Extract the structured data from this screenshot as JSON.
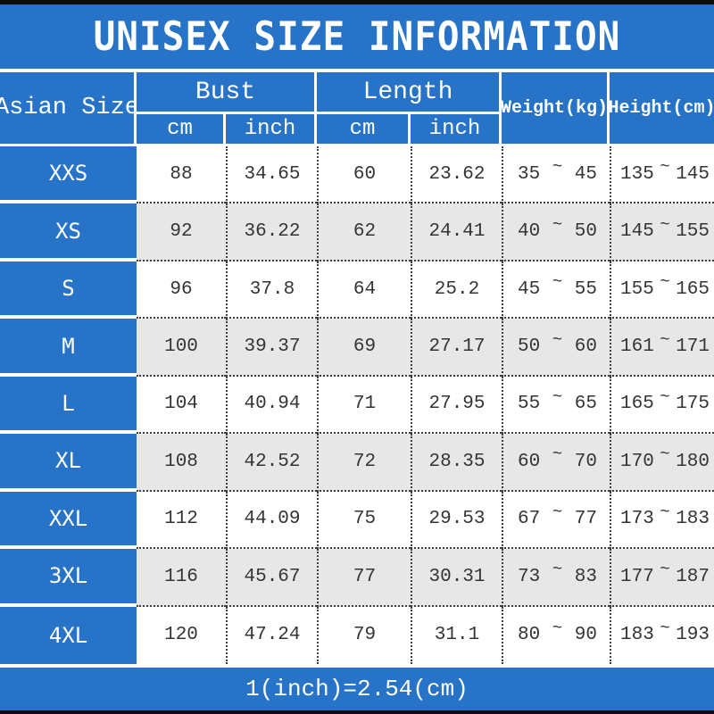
{
  "title": "UNISEX SIZE INFORMATION",
  "header": {
    "size": "Asian Size",
    "bust": "Bust",
    "length": "Length",
    "cm": "cm",
    "inch": "inch",
    "weight": "Weight(kg)",
    "height": "Height(cm)"
  },
  "tilde": "~",
  "footer": {
    "note": "1(inch)=2.54(cm)"
  },
  "colors": {
    "accent_blue": "#2673c8",
    "alt_row_gray": "#e7e7e7",
    "border_dotted": "#3c3c3c",
    "bar_black": "#0d0d0d",
    "text_dark": "#343434",
    "text_white": "#ffffff"
  },
  "chart_data": {
    "type": "table",
    "title": "UNISEX SIZE INFORMATION",
    "columns": [
      "Asian Size",
      "Bust cm",
      "Bust inch",
      "Length cm",
      "Length inch",
      "Weight(kg)",
      "Height(cm)"
    ],
    "rows": [
      {
        "size": "XXS",
        "bust_cm": "88",
        "bust_inch": "34.65",
        "len_cm": "60",
        "len_inch": "23.62",
        "w_min": "35",
        "w_max": "45",
        "h_min": "135",
        "h_max": "145"
      },
      {
        "size": "XS",
        "bust_cm": "92",
        "bust_inch": "36.22",
        "len_cm": "62",
        "len_inch": "24.41",
        "w_min": "40",
        "w_max": "50",
        "h_min": "145",
        "h_max": "155"
      },
      {
        "size": "S",
        "bust_cm": "96",
        "bust_inch": "37.8",
        "len_cm": "64",
        "len_inch": "25.2",
        "w_min": "45",
        "w_max": "55",
        "h_min": "155",
        "h_max": "165"
      },
      {
        "size": "M",
        "bust_cm": "100",
        "bust_inch": "39.37",
        "len_cm": "69",
        "len_inch": "27.17",
        "w_min": "50",
        "w_max": "60",
        "h_min": "161",
        "h_max": "171"
      },
      {
        "size": "L",
        "bust_cm": "104",
        "bust_inch": "40.94",
        "len_cm": "71",
        "len_inch": "27.95",
        "w_min": "55",
        "w_max": "65",
        "h_min": "165",
        "h_max": "175"
      },
      {
        "size": "XL",
        "bust_cm": "108",
        "bust_inch": "42.52",
        "len_cm": "72",
        "len_inch": "28.35",
        "w_min": "60",
        "w_max": "70",
        "h_min": "170",
        "h_max": "180"
      },
      {
        "size": "XXL",
        "bust_cm": "112",
        "bust_inch": "44.09",
        "len_cm": "75",
        "len_inch": "29.53",
        "w_min": "67",
        "w_max": "77",
        "h_min": "173",
        "h_max": "183"
      },
      {
        "size": "3XL",
        "bust_cm": "116",
        "bust_inch": "45.67",
        "len_cm": "77",
        "len_inch": "30.31",
        "w_min": "73",
        "w_max": "83",
        "h_min": "177",
        "h_max": "187"
      },
      {
        "size": "4XL",
        "bust_cm": "120",
        "bust_inch": "47.24",
        "len_cm": "79",
        "len_inch": "31.1",
        "w_min": "80",
        "w_max": "90",
        "h_min": "183",
        "h_max": "193"
      }
    ],
    "footnote": "1(inch)=2.54(cm)"
  }
}
